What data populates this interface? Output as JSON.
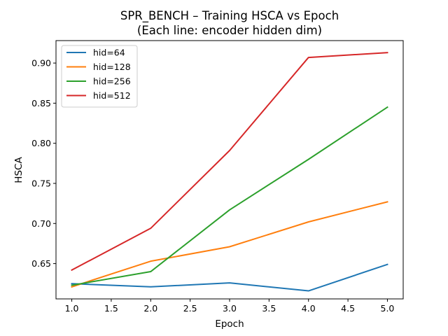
{
  "chart_data": {
    "type": "line",
    "title_line1": "SPR_BENCH – Training HSCA vs Epoch",
    "title_line2": "(Each line: encoder hidden dim)",
    "xlabel": "Epoch",
    "ylabel": "HSCA",
    "xlim": [
      0.8,
      5.2
    ],
    "ylim": [
      0.606,
      0.928
    ],
    "x_ticks": [
      1.0,
      1.5,
      2.0,
      2.5,
      3.0,
      3.5,
      4.0,
      4.5,
      5.0
    ],
    "x_tick_labels": [
      "1.0",
      "1.5",
      "2.0",
      "2.5",
      "3.0",
      "3.5",
      "4.0",
      "4.5",
      "5.0"
    ],
    "y_ticks": [
      0.65,
      0.7,
      0.75,
      0.8,
      0.85,
      0.9
    ],
    "y_tick_labels": [
      "0.65",
      "0.70",
      "0.75",
      "0.80",
      "0.85",
      "0.90"
    ],
    "x": [
      1,
      2,
      3,
      4,
      5
    ],
    "grid": false,
    "legend_position": "top-left",
    "series": [
      {
        "name": "hid=64",
        "color": "#1f77b4",
        "values": [
          0.625,
          0.621,
          0.626,
          0.616,
          0.649
        ]
      },
      {
        "name": "hid=128",
        "color": "#ff7f0e",
        "values": [
          0.621,
          0.653,
          0.671,
          0.702,
          0.727
        ]
      },
      {
        "name": "hid=256",
        "color": "#2ca02c",
        "values": [
          0.623,
          0.64,
          0.717,
          0.78,
          0.845
        ]
      },
      {
        "name": "hid=512",
        "color": "#d62728",
        "values": [
          0.642,
          0.694,
          0.791,
          0.907,
          0.913
        ]
      }
    ]
  }
}
